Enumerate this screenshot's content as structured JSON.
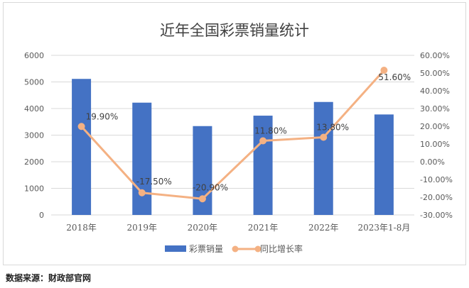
{
  "colors": {
    "bar": "#4472c4",
    "line": "#f4b183",
    "grid": "#d9d9d9",
    "axis_text": "#595959",
    "label_text": "#404040"
  },
  "source_note": "数据来源：财政部官网",
  "chart_data": {
    "type": "bar",
    "title": "近年全国彩票销量统计",
    "categories": [
      "2018年",
      "2019年",
      "2020年",
      "2021年",
      "2022年",
      "2023年1-8月"
    ],
    "series": [
      {
        "name": "彩票销量",
        "type": "bar",
        "axis": "left",
        "values": [
          5114,
          4221,
          3340,
          3732,
          4247,
          3777
        ]
      },
      {
        "name": "同比增长率",
        "type": "line",
        "axis": "right",
        "values": [
          19.9,
          -17.5,
          -20.9,
          11.8,
          13.8,
          51.6
        ],
        "labels": [
          "19.90%",
          "-17.50%",
          "-20.90%",
          "11.80%",
          "13.80%",
          "51.60%"
        ]
      }
    ],
    "y_left": {
      "ylim": [
        0,
        6000
      ],
      "ticks": [
        0,
        1000,
        2000,
        3000,
        4000,
        5000,
        6000
      ],
      "tick_labels": [
        "0",
        "1000",
        "2000",
        "3000",
        "4000",
        "5000",
        "6000"
      ]
    },
    "y_right": {
      "ylim": [
        -30,
        60
      ],
      "ticks": [
        -30,
        -20,
        -10,
        0,
        10,
        20,
        30,
        40,
        50,
        60
      ],
      "tick_labels": [
        "-30.00%",
        "-20.00%",
        "-10.00%",
        "0.00%",
        "10.00%",
        "20.00%",
        "30.00%",
        "40.00%",
        "50.00%",
        "60.00%"
      ]
    },
    "grid": true,
    "legend_position": "bottom"
  }
}
